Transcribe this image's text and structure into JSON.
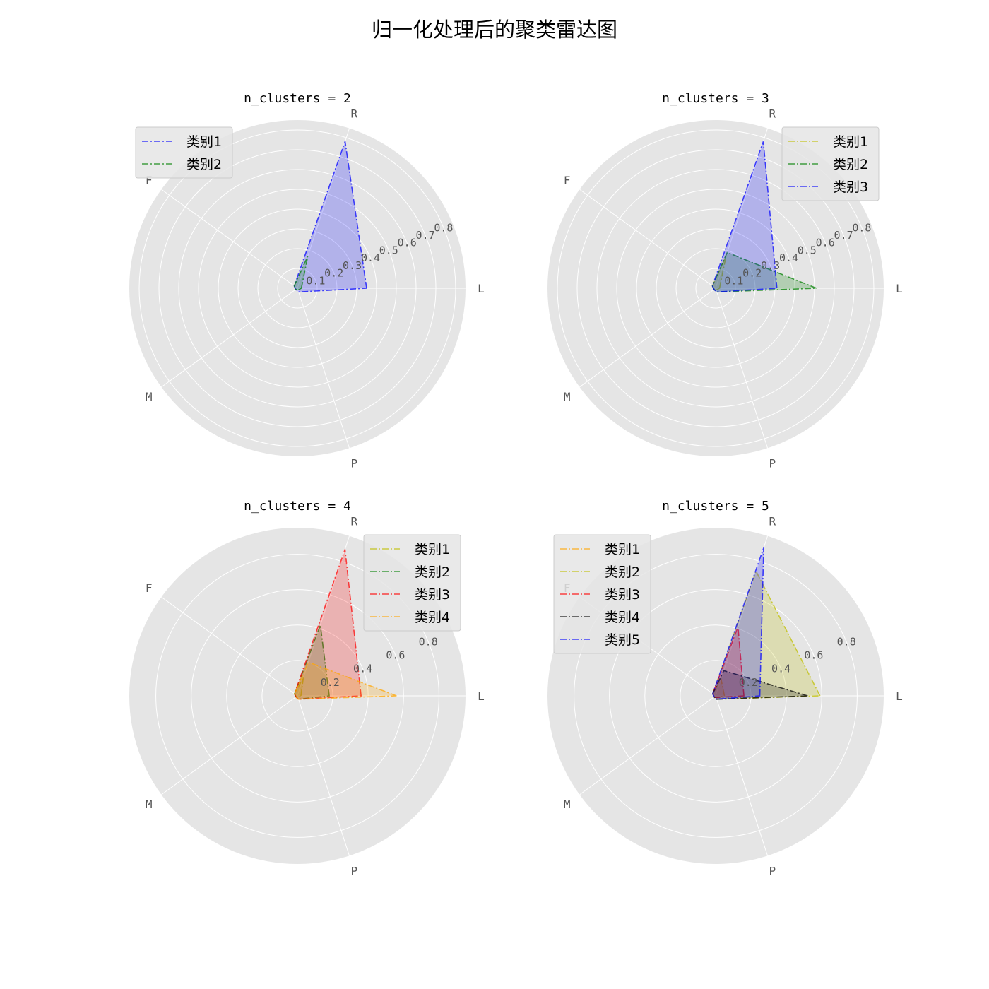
{
  "figure_title": "归一化处理后的聚类雷达图",
  "axis_labels": [
    "L",
    "R",
    "F",
    "M",
    "P"
  ],
  "chart_data": [
    {
      "type": "radar",
      "title": "n_clusters = 2",
      "rlim": [
        0,
        0.85
      ],
      "r_ticks": [
        0.1,
        0.2,
        0.3,
        0.4,
        0.5,
        0.6,
        0.7,
        0.8
      ],
      "r_tick_labels": [
        "0.1",
        "0.2",
        "0.3",
        "0.4",
        "0.5",
        "0.6",
        "0.7",
        "0.8"
      ],
      "grid": true,
      "legend_position": "upper-left",
      "series": [
        {
          "name": "类别1",
          "color": "#0000ff",
          "values": [
            0.35,
            0.78,
            0.02,
            0.01,
            0.02
          ]
        },
        {
          "name": "类别2",
          "color": "#008000",
          "values": [
            0.02,
            0.17,
            0.02,
            0.01,
            0.01
          ]
        }
      ]
    },
    {
      "type": "radar",
      "title": "n_clusters = 3",
      "rlim": [
        0,
        0.85
      ],
      "r_ticks": [
        0.1,
        0.2,
        0.3,
        0.4,
        0.5,
        0.6,
        0.7,
        0.8
      ],
      "r_tick_labels": [
        "0.1",
        "0.2",
        "0.3",
        "0.4",
        "0.5",
        "0.6",
        "0.7",
        "0.8"
      ],
      "grid": true,
      "legend_position": "upper-right",
      "series": [
        {
          "name": "类别1",
          "color": "#bfbf00",
          "values": [
            0.02,
            0.17,
            0.02,
            0.01,
            0.01
          ]
        },
        {
          "name": "类别2",
          "color": "#008000",
          "values": [
            0.51,
            0.19,
            0.02,
            0.01,
            0.02
          ]
        },
        {
          "name": "类别3",
          "color": "#0000ff",
          "values": [
            0.31,
            0.78,
            0.02,
            0.01,
            0.02
          ]
        }
      ]
    },
    {
      "type": "radar",
      "title": "n_clusters = 4",
      "rlim": [
        0,
        0.95
      ],
      "r_ticks": [
        0.2,
        0.4,
        0.6,
        0.8
      ],
      "r_tick_labels": [
        "0.2",
        "0.4",
        "0.6",
        "0.8"
      ],
      "grid": true,
      "legend_position": "upper-right",
      "series": [
        {
          "name": "类别1",
          "color": "#bfbf00",
          "values": [
            0.02,
            0.11,
            0.02,
            0.01,
            0.01
          ]
        },
        {
          "name": "类别2",
          "color": "#008000",
          "values": [
            0.18,
            0.42,
            0.02,
            0.01,
            0.02
          ]
        },
        {
          "name": "类别3",
          "color": "#ff0000",
          "values": [
            0.36,
            0.87,
            0.02,
            0.01,
            0.02
          ]
        },
        {
          "name": "类别4",
          "color": "#ffa500",
          "values": [
            0.56,
            0.2,
            0.02,
            0.01,
            0.02
          ]
        }
      ]
    },
    {
      "type": "radar",
      "title": "n_clusters = 5",
      "rlim": [
        0,
        0.95
      ],
      "r_ticks": [
        0.2,
        0.4,
        0.6,
        0.8
      ],
      "r_tick_labels": [
        "0.2",
        "0.4",
        "0.6",
        "0.8"
      ],
      "grid": true,
      "legend_position": "upper-left",
      "series": [
        {
          "name": "类别1",
          "color": "#ffa500",
          "values": [
            0.05,
            0.1,
            0.02,
            0.01,
            0.01
          ]
        },
        {
          "name": "类别2",
          "color": "#bfbf00",
          "values": [
            0.59,
            0.74,
            0.02,
            0.01,
            0.02
          ]
        },
        {
          "name": "类别3",
          "color": "#ff0000",
          "values": [
            0.16,
            0.41,
            0.02,
            0.01,
            0.01
          ]
        },
        {
          "name": "类别4",
          "color": "#000000",
          "values": [
            0.52,
            0.15,
            0.02,
            0.01,
            0.02
          ]
        },
        {
          "name": "类别5",
          "color": "#0000ff",
          "values": [
            0.25,
            0.88,
            0.02,
            0.01,
            0.02
          ]
        }
      ]
    }
  ]
}
